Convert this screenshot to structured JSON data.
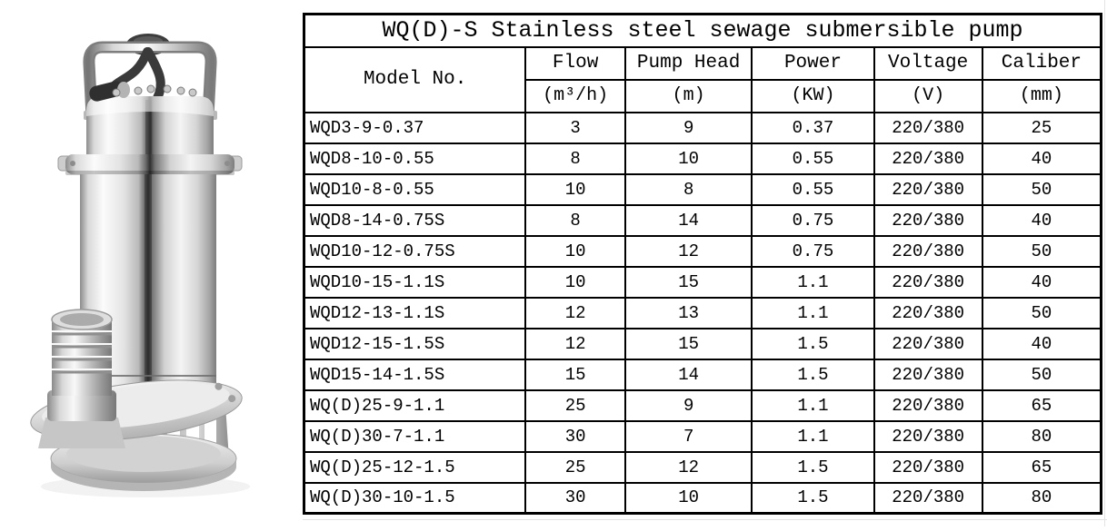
{
  "table": {
    "title": "WQ(D)-S  Stainless steel sewage submersible pump",
    "columns": [
      {
        "label": "Model No.",
        "unit": ""
      },
      {
        "label": "Flow",
        "unit": "(m³/h)"
      },
      {
        "label": "Pump Head",
        "unit": "(m)"
      },
      {
        "label": "Power",
        "unit": "(KW)"
      },
      {
        "label": "Voltage",
        "unit": "(V)"
      },
      {
        "label": "Caliber",
        "unit": "(mm)"
      }
    ],
    "rows": [
      [
        "WQD3-9-0.37",
        "3",
        "9",
        "0.37",
        "220/380",
        "25"
      ],
      [
        "WQD8-10-0.55",
        "8",
        "10",
        "0.55",
        "220/380",
        "40"
      ],
      [
        "WQD10-8-0.55",
        "10",
        "8",
        "0.55",
        "220/380",
        "50"
      ],
      [
        "WQD8-14-0.75S",
        "8",
        "14",
        "0.75",
        "220/380",
        "40"
      ],
      [
        "WQD10-12-0.75S",
        "10",
        "12",
        "0.75",
        "220/380",
        "50"
      ],
      [
        "WQD10-15-1.1S",
        "10",
        "15",
        "1.1",
        "220/380",
        "40"
      ],
      [
        "WQD12-13-1.1S",
        "12",
        "13",
        "1.1",
        "220/380",
        "50"
      ],
      [
        "WQD12-15-1.5S",
        "12",
        "15",
        "1.5",
        "220/380",
        "40"
      ],
      [
        "WQD15-14-1.5S",
        "15",
        "14",
        "1.5",
        "220/380",
        "50"
      ],
      [
        "WQ(D)25-9-1.1",
        "25",
        "9",
        "1.1",
        "220/380",
        "65"
      ],
      [
        "WQ(D)30-7-1.1",
        "30",
        "7",
        "1.1",
        "220/380",
        "80"
      ],
      [
        "WQ(D)25-12-1.5",
        "25",
        "12",
        "1.5",
        "220/380",
        "65"
      ],
      [
        "WQ(D)30-10-1.5",
        "30",
        "10",
        "1.5",
        "220/380",
        "80"
      ]
    ]
  },
  "colors": {
    "table_border": "#000000",
    "page_background": "#ffffff",
    "text": "#000000",
    "pump_metal_light": "#f5f5f5",
    "pump_metal_mid": "#c9c9c9",
    "pump_metal_dark": "#6e6e6e",
    "pump_cable": "#3a3a3a"
  }
}
